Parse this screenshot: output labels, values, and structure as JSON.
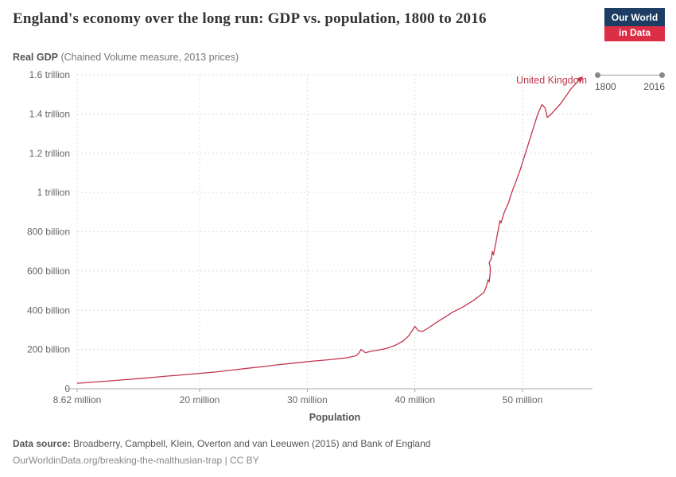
{
  "header": {
    "title": "England's economy over the long run: GDP vs. population, 1800 to 2016",
    "subtitle_bold": "Real GDP",
    "subtitle_rest": " (Chained Volume measure, 2013 prices)"
  },
  "logo": {
    "line1": "Our World",
    "line2": "in Data"
  },
  "timeline": {
    "start_label": "1800",
    "end_label": "2016"
  },
  "legend": {
    "entity": "United Kingdom",
    "color": "#c0364d"
  },
  "footer": {
    "source_label": "Data source:",
    "source_text": " Broadberry, Campbell, Klein, Overton and van Leeuwen (2015) and Bank of England",
    "note": "OurWorldinData.org/breaking-the-malthusian-trap | CC BY"
  },
  "chart_data": {
    "type": "line",
    "title": "Real GDP (Chained Volume measure, 2013 prices)",
    "xlabel": "Population",
    "ylabel": "Real GDP",
    "x_unit": "people (millions)",
    "y_unit": "GBP, 2013 prices (billions)",
    "xlim": [
      8.62,
      56.5
    ],
    "ylim": [
      0,
      1600
    ],
    "grid": "dashed",
    "legend_position": "end-of-line",
    "line_color": "#c0364d",
    "x_ticks": [
      {
        "value": 8.62,
        "label": "8.62 million"
      },
      {
        "value": 20,
        "label": "20 million"
      },
      {
        "value": 30,
        "label": "30 million"
      },
      {
        "value": 40,
        "label": "40 million"
      },
      {
        "value": 50,
        "label": "50 million"
      }
    ],
    "y_ticks": [
      {
        "value": 0,
        "label": "0"
      },
      {
        "value": 200,
        "label": "200 billion"
      },
      {
        "value": 400,
        "label": "400 billion"
      },
      {
        "value": 600,
        "label": "600 billion"
      },
      {
        "value": 800,
        "label": "800 billion"
      },
      {
        "value": 1000,
        "label": "1 trillion"
      },
      {
        "value": 1200,
        "label": "1.2 trillion"
      },
      {
        "value": 1400,
        "label": "1.4 trillion"
      },
      {
        "value": 1600,
        "label": "1.6 trillion"
      }
    ],
    "series": [
      {
        "name": "United Kingdom",
        "points": [
          [
            8.62,
            28
          ],
          [
            9.7,
            32
          ],
          [
            11.2,
            38
          ],
          [
            13,
            46
          ],
          [
            14.9,
            54
          ],
          [
            16.7,
            63
          ],
          [
            18.9,
            73
          ],
          [
            21.4,
            85
          ],
          [
            23,
            95
          ],
          [
            24.4,
            104
          ],
          [
            25.9,
            113
          ],
          [
            27.2,
            122
          ],
          [
            28.8,
            131
          ],
          [
            30.4,
            140
          ],
          [
            32,
            148
          ],
          [
            33.6,
            157
          ],
          [
            34.5,
            168
          ],
          [
            34.8,
            182
          ],
          [
            35,
            200
          ],
          [
            35.4,
            184
          ],
          [
            36,
            192
          ],
          [
            36.8,
            199
          ],
          [
            37.4,
            206
          ],
          [
            38.2,
            222
          ],
          [
            38.9,
            243
          ],
          [
            39.4,
            268
          ],
          [
            39.8,
            300
          ],
          [
            40,
            318
          ],
          [
            40.3,
            296
          ],
          [
            40.7,
            292
          ],
          [
            41.2,
            308
          ],
          [
            42,
            338
          ],
          [
            43,
            372
          ],
          [
            43.5,
            390
          ],
          [
            44.5,
            418
          ],
          [
            45.5,
            452
          ],
          [
            46.4,
            490
          ],
          [
            46.6,
            515
          ],
          [
            46.8,
            555
          ],
          [
            46.9,
            545
          ],
          [
            47,
            592
          ],
          [
            47,
            622
          ],
          [
            46.9,
            643
          ],
          [
            47.1,
            662
          ],
          [
            47.2,
            700
          ],
          [
            47.3,
            682
          ],
          [
            47.5,
            738
          ],
          [
            47.7,
            798
          ],
          [
            47.9,
            856
          ],
          [
            48,
            845
          ],
          [
            48.3,
            898
          ],
          [
            48.7,
            948
          ],
          [
            49,
            1000
          ],
          [
            49.4,
            1058
          ],
          [
            49.8,
            1118
          ],
          [
            50.2,
            1188
          ],
          [
            50.6,
            1258
          ],
          [
            51,
            1328
          ],
          [
            51.4,
            1398
          ],
          [
            51.8,
            1448
          ],
          [
            52.1,
            1430
          ],
          [
            52.3,
            1382
          ],
          [
            52.6,
            1396
          ],
          [
            53,
            1420
          ],
          [
            53.5,
            1450
          ],
          [
            54,
            1488
          ],
          [
            54.5,
            1528
          ],
          [
            55,
            1558
          ],
          [
            55.3,
            1575
          ]
        ]
      }
    ]
  }
}
